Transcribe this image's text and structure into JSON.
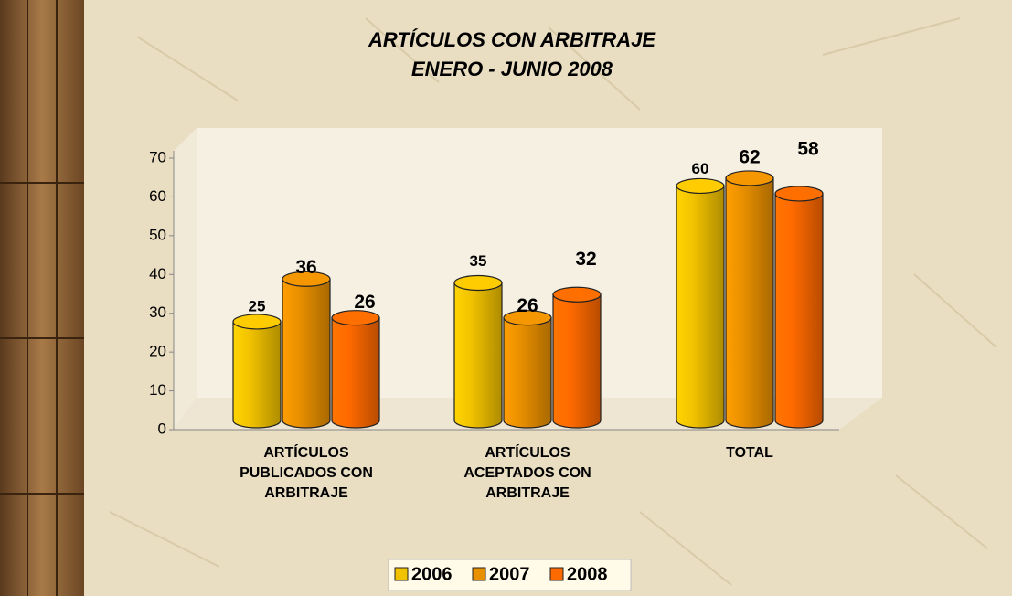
{
  "chart_data": {
    "type": "bar3d",
    "title": "ARTÍCULOS CON ARBITRAJE",
    "subtitle": "ENERO - JUNIO 2008",
    "categories": [
      "ARTÍCULOS PUBLICADOS CON ARBITRAJE",
      "ARTÍCULOS ACEPTADOS CON ARBITRAJE",
      "TOTAL"
    ],
    "series": [
      {
        "name": "2006",
        "color": "#f2c200",
        "values": [
          25,
          35,
          60
        ]
      },
      {
        "name": "2007",
        "color": "#e99000",
        "values": [
          36,
          26,
          62
        ]
      },
      {
        "name": "2008",
        "color": "#ff6a00",
        "values": [
          26,
          32,
          58
        ]
      }
    ],
    "ylim": [
      0,
      70
    ],
    "yticks": [
      0,
      10,
      20,
      30,
      40,
      50,
      60,
      70
    ],
    "legend": "bottom"
  }
}
